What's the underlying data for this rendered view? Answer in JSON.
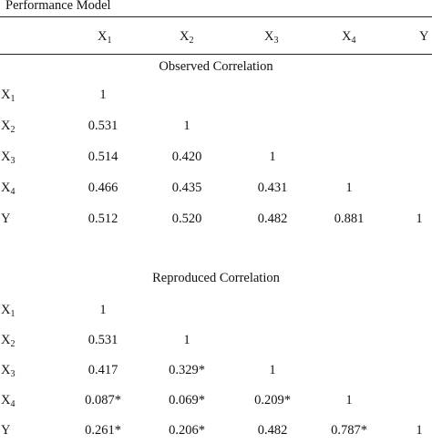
{
  "title": "Performance Model",
  "header": {
    "x1": {
      "base": "X",
      "sub": "1"
    },
    "x2": {
      "base": "X",
      "sub": "2"
    },
    "x3": {
      "base": "X",
      "sub": "3"
    },
    "x4": {
      "base": "X",
      "sub": "4"
    },
    "y": "Y"
  },
  "observed": {
    "title": "Observed Correlation",
    "rows": [
      {
        "label": "X",
        "sub": "1",
        "values": [
          "1",
          "",
          "",
          "",
          ""
        ]
      },
      {
        "label": "X",
        "sub": "2",
        "values": [
          "0.531",
          "1",
          "",
          "",
          ""
        ]
      },
      {
        "label": "X",
        "sub": "3",
        "values": [
          "0.514",
          "0.420",
          "1",
          "",
          ""
        ]
      },
      {
        "label": "X",
        "sub": "4",
        "values": [
          "0.466",
          "0.435",
          "0.431",
          "1",
          ""
        ]
      },
      {
        "label": "Y",
        "sub": "",
        "values": [
          "0.512",
          "0.520",
          "0.482",
          "0.881",
          "1"
        ]
      }
    ]
  },
  "reproduced": {
    "title": "Reproduced Correlation",
    "rows": [
      {
        "label": "X",
        "sub": "1",
        "values": [
          "1",
          "",
          "",
          "",
          ""
        ]
      },
      {
        "label": "X",
        "sub": "2",
        "values": [
          "0.531",
          "1",
          "",
          "",
          ""
        ]
      },
      {
        "label": "X",
        "sub": "3",
        "values": [
          "0.417",
          "0.329*",
          "1",
          "",
          ""
        ]
      },
      {
        "label": "X",
        "sub": "4",
        "values": [
          "0.087*",
          "0.069*",
          "0.209*",
          "1",
          ""
        ]
      },
      {
        "label": "Y",
        "sub": "",
        "values": [
          "0.261*",
          "0.206*",
          "0.482",
          "0.787*",
          "1"
        ]
      }
    ]
  }
}
